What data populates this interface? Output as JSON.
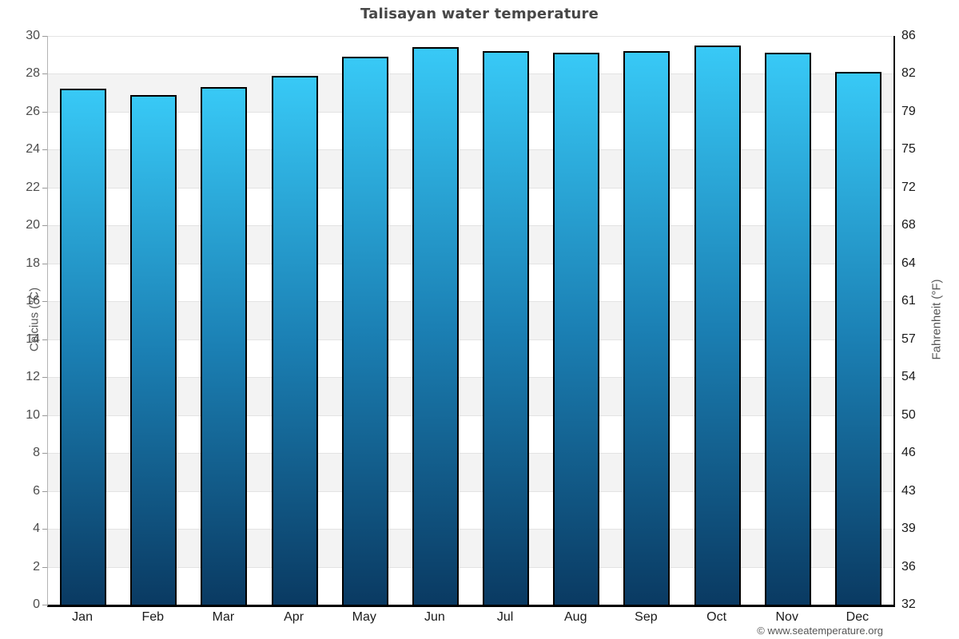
{
  "title": "Talisayan water temperature",
  "footer": "© www.seatemperature.org",
  "axes": {
    "left_label": "Celcius (°C)",
    "right_label": "Fahrenheit (°F)"
  },
  "chart_data": {
    "type": "bar",
    "title": "Talisayan water temperature",
    "categories": [
      "Jan",
      "Feb",
      "Mar",
      "Apr",
      "May",
      "Jun",
      "Jul",
      "Aug",
      "Sep",
      "Oct",
      "Nov",
      "Dec"
    ],
    "values": [
      27.2,
      26.9,
      27.3,
      27.9,
      28.9,
      29.4,
      29.2,
      29.1,
      29.2,
      29.5,
      29.1,
      28.1
    ],
    "value_unit": "°C",
    "ylabel": "Celcius (°C)",
    "ylabel_right": "Fahrenheit (°F)",
    "ylim": [
      0,
      30
    ],
    "yticks_celsius": [
      30,
      28,
      26,
      24,
      22,
      20,
      18,
      16,
      14,
      12,
      10,
      8,
      6,
      4,
      2,
      0
    ],
    "yticks_fahrenheit": [
      86,
      82,
      79,
      75,
      72,
      68,
      64,
      61,
      57,
      54,
      50,
      46,
      43,
      39,
      36,
      32
    ],
    "grid": "horizontal gridlines with alternating shaded bands",
    "legend_position": "none",
    "colors": {
      "bar_gradient_top": "#38c9f6",
      "bar_gradient_mid": "#1b80b4",
      "bar_gradient_bottom": "#0a3a62",
      "bar_border": "#000000",
      "band": "#f3f3f3",
      "gridline": "#e3e3e3",
      "bottom_axis": "#000000",
      "title_color": "#474747"
    }
  }
}
